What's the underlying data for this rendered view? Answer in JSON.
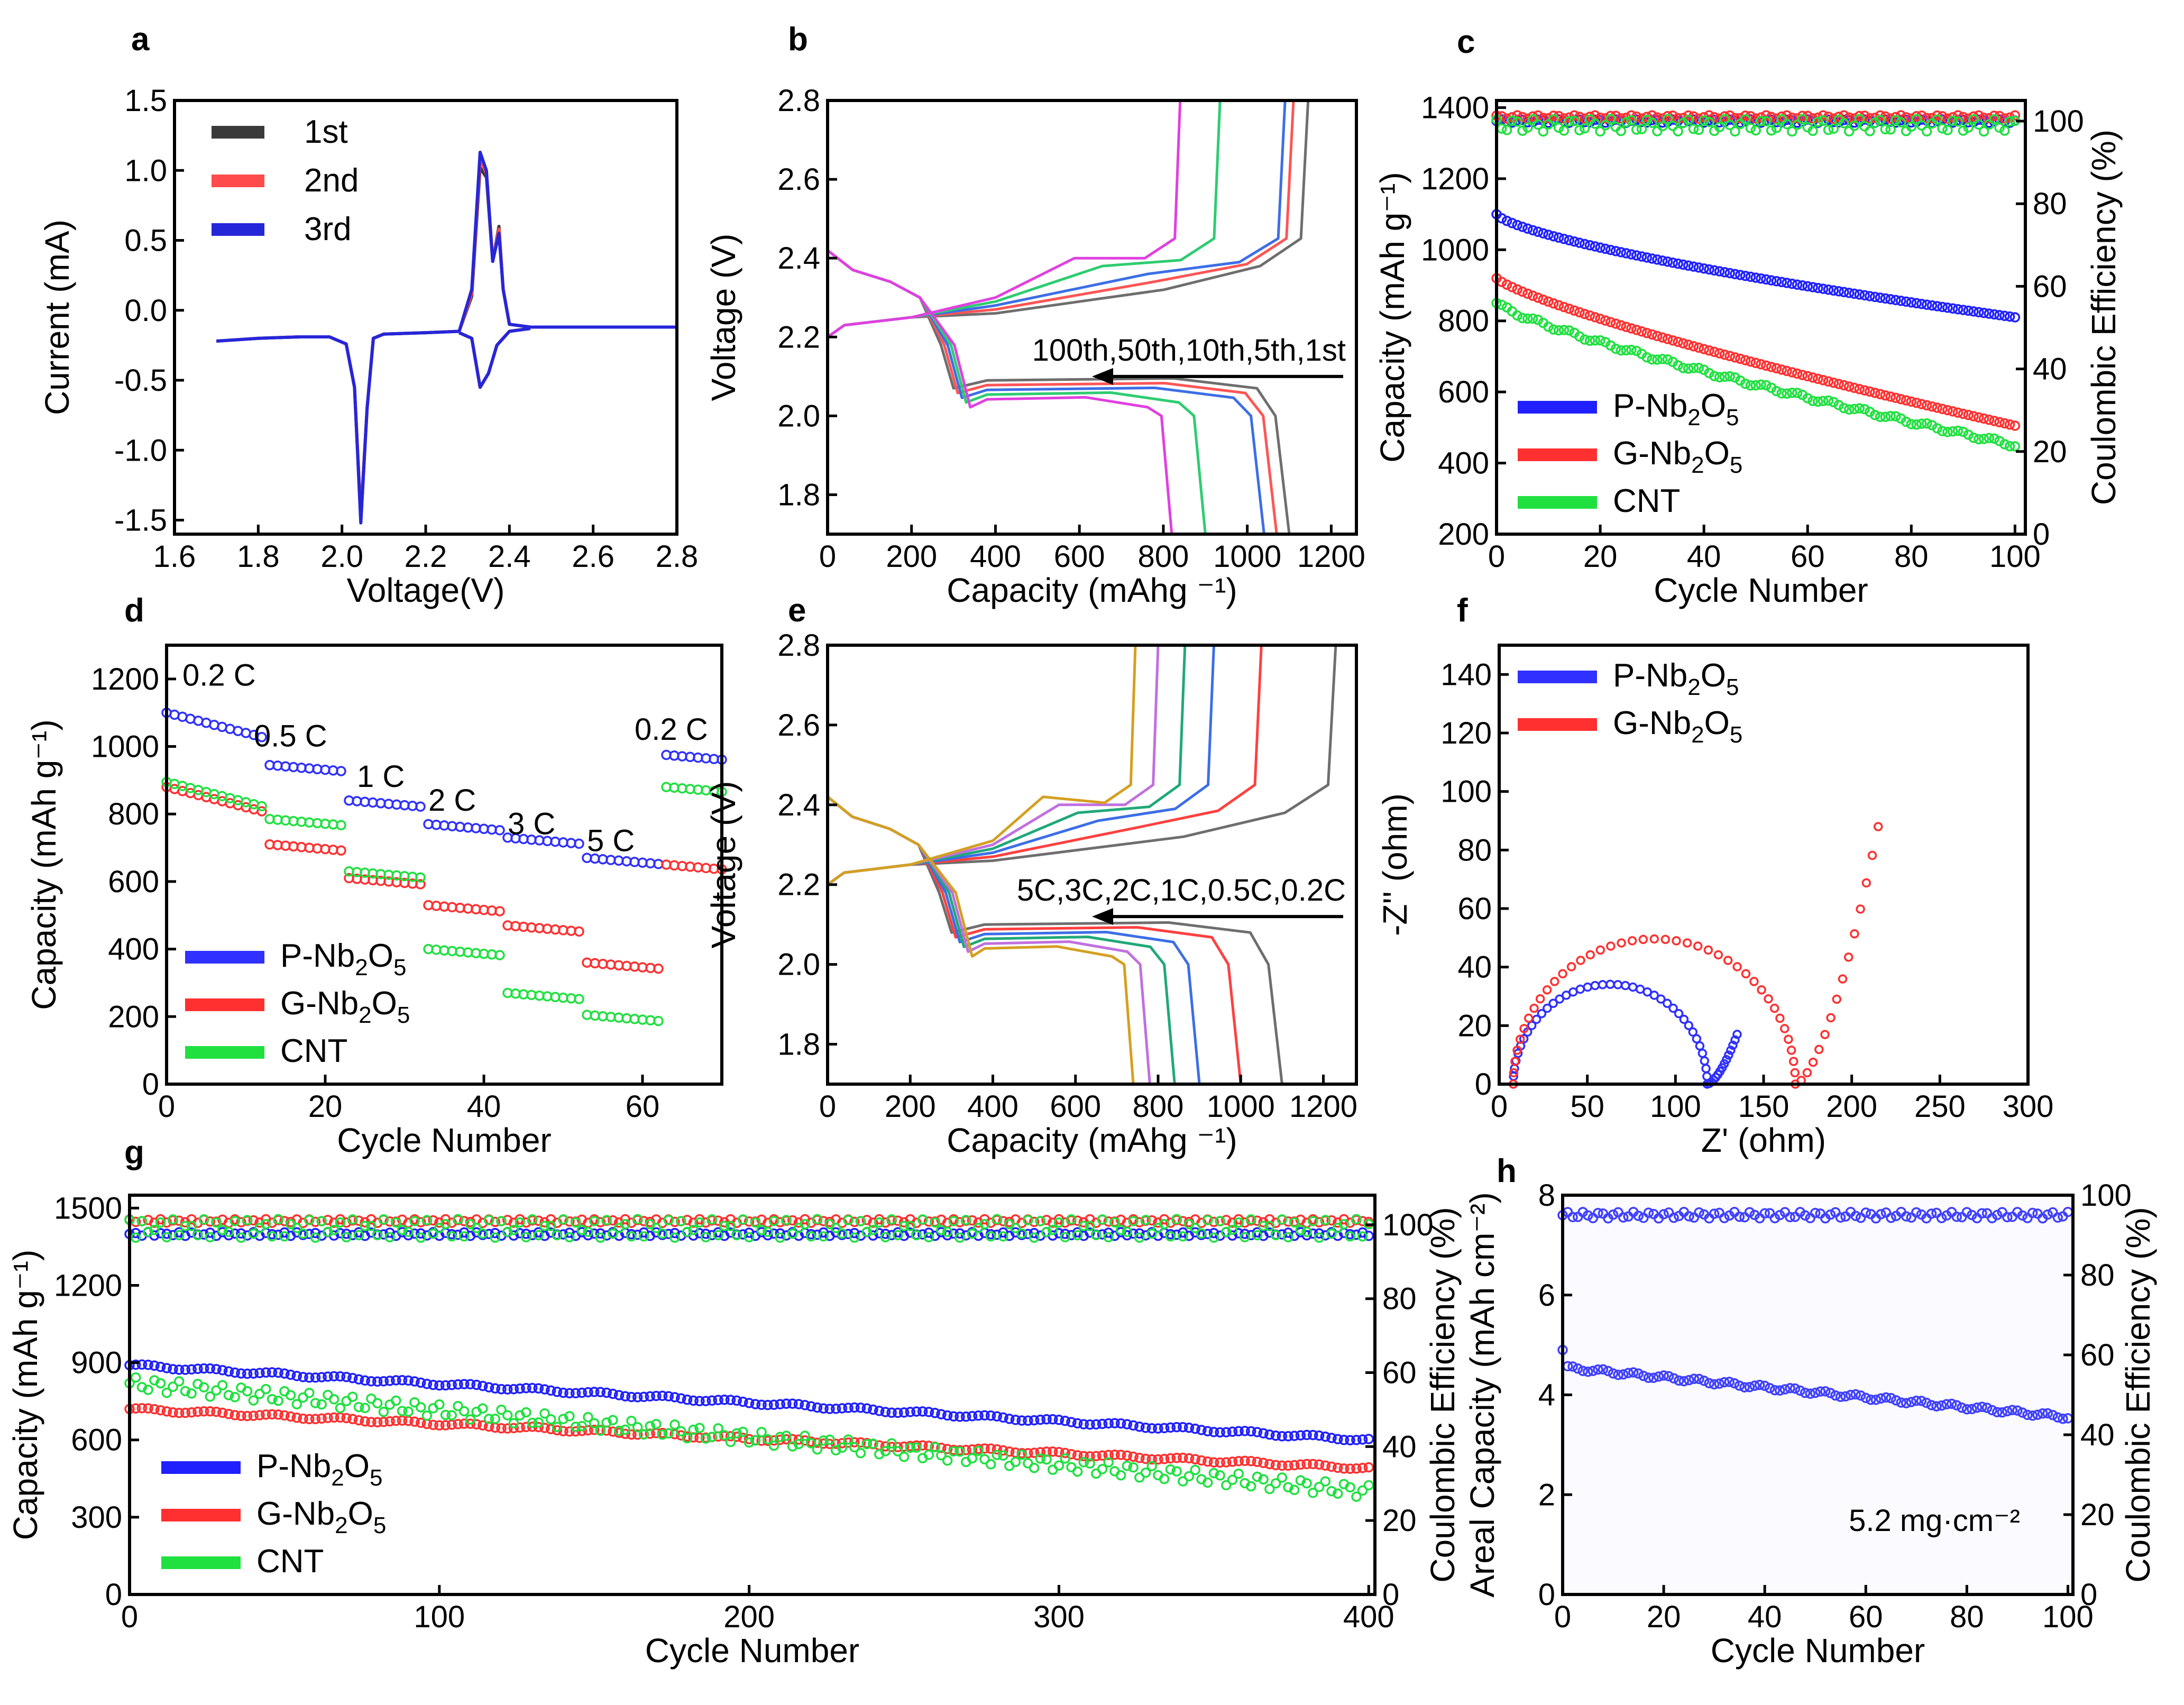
{
  "figure": {
    "panels": {
      "a": {
        "letter": "a"
      },
      "b": {
        "letter": "b"
      },
      "c": {
        "letter": "c"
      },
      "d": {
        "letter": "d"
      },
      "e": {
        "letter": "e"
      },
      "f": {
        "letter": "f"
      },
      "g": {
        "letter": "g"
      },
      "h": {
        "letter": "h"
      }
    }
  },
  "chart_data": [
    {
      "id": "a",
      "type": "line",
      "xlabel": "Voltage(V)",
      "ylabel": "Current (mA)",
      "xlim": [
        1.6,
        2.8
      ],
      "ylim": [
        -1.6,
        1.5
      ],
      "xticks": [
        "1.6",
        "1.8",
        "2.0",
        "2.2",
        "2.4",
        "2.6",
        "2.8"
      ],
      "yticks": [
        "-1.5",
        "-1.0",
        "-0.5",
        "0.0",
        "0.5",
        "1.0",
        "1.5"
      ],
      "series": [
        {
          "name": "1st",
          "color": "#3a3a3a",
          "x": [
            1.7,
            1.8,
            1.9,
            1.97,
            2.01,
            2.03,
            2.045,
            2.06,
            2.075,
            2.1,
            2.2,
            2.28,
            2.31,
            2.33,
            2.345,
            2.36,
            2.375,
            2.385,
            2.4,
            2.45,
            2.6,
            2.8
          ],
          "y": [
            -0.22,
            -0.2,
            -0.19,
            -0.19,
            -0.24,
            -0.55,
            -1.47,
            -0.7,
            -0.2,
            -0.17,
            -0.16,
            -0.15,
            0.1,
            1.02,
            0.95,
            0.35,
            0.6,
            0.15,
            -0.1,
            -0.12,
            -0.12,
            -0.12
          ]
        },
        {
          "name": "2nd",
          "color": "#ff4b4b",
          "x": [
            1.7,
            1.8,
            1.9,
            1.97,
            2.01,
            2.03,
            2.045,
            2.06,
            2.075,
            2.1,
            2.2,
            2.28,
            2.31,
            2.33,
            2.345,
            2.36,
            2.375,
            2.385,
            2.4,
            2.45,
            2.6,
            2.8
          ],
          "y": [
            -0.22,
            -0.2,
            -0.19,
            -0.19,
            -0.24,
            -0.55,
            -1.49,
            -0.7,
            -0.2,
            -0.17,
            -0.16,
            -0.15,
            0.12,
            1.08,
            0.98,
            0.35,
            0.58,
            0.15,
            -0.1,
            -0.12,
            -0.12,
            -0.12
          ]
        },
        {
          "name": "3rd",
          "color": "#2626d9",
          "x": [
            1.7,
            1.8,
            1.9,
            1.97,
            2.01,
            2.03,
            2.045,
            2.06,
            2.075,
            2.1,
            2.2,
            2.28,
            2.31,
            2.33,
            2.345,
            2.36,
            2.375,
            2.385,
            2.4,
            2.45,
            2.6,
            2.8
          ],
          "y": [
            -0.22,
            -0.2,
            -0.19,
            -0.19,
            -0.24,
            -0.55,
            -1.52,
            -0.7,
            -0.2,
            -0.17,
            -0.16,
            -0.15,
            0.15,
            1.13,
            1.0,
            0.35,
            0.55,
            0.15,
            -0.1,
            -0.12,
            -0.12,
            -0.12
          ]
        }
      ],
      "reverse_segment": {
        "x": [
          2.28,
          2.31,
          2.33,
          2.35,
          2.37,
          2.4,
          2.45
        ],
        "y": [
          -0.16,
          -0.2,
          -0.55,
          -0.45,
          -0.25,
          -0.15,
          -0.13
        ]
      },
      "legend": [
        "1st",
        "2nd",
        "3rd"
      ]
    },
    {
      "id": "b",
      "type": "line",
      "xlabel": "Capacity (mAhg ⁻¹)",
      "ylabel": "Voltage (V)",
      "xlim": [
        0,
        1260
      ],
      "ylim": [
        1.7,
        2.8
      ],
      "xticks": [
        "0",
        "200",
        "400",
        "600",
        "800",
        "1000",
        "1200"
      ],
      "yticks": [
        "1.8",
        "2.0",
        "2.2",
        "2.4",
        "2.6",
        "2.8"
      ],
      "cycles": [
        {
          "name": "1st",
          "color": "#6e6e6e",
          "capacity": 1100,
          "charge_capacity": 1145
        },
        {
          "name": "5th",
          "color": "#ff5555",
          "capacity": 1070,
          "charge_capacity": 1110
        },
        {
          "name": "10th",
          "color": "#3c6ee6",
          "capacity": 1040,
          "charge_capacity": 1090
        },
        {
          "name": "50th",
          "color": "#2ecc71",
          "capacity": 900,
          "charge_capacity": 935
        },
        {
          "name": "100th",
          "color": "#e040e0",
          "capacity": 820,
          "charge_capacity": 840
        }
      ],
      "annotation": "100th,50th,10th,5th,1st"
    },
    {
      "id": "c",
      "type": "scatter",
      "xlabel": "Cycle Number",
      "ylabel": "Capacity (mAh g⁻¹)",
      "ylabel_right": "Coulombic Efficiency (%)",
      "xlim": [
        0,
        102
      ],
      "ylim": [
        200,
        1420
      ],
      "ylim_right": [
        0,
        105
      ],
      "xticks": [
        "0",
        "20",
        "40",
        "60",
        "80",
        "100"
      ],
      "yticks": [
        "200",
        "400",
        "600",
        "800",
        "1000",
        "1200",
        "1400"
      ],
      "yticks_right": [
        "0",
        "20",
        "40",
        "60",
        "80",
        "100"
      ],
      "series": [
        {
          "name": "P-Nb2O5",
          "color": "#2020ff",
          "start": 1100,
          "end": 810,
          "ce": 100
        },
        {
          "name": "G-Nb2O5",
          "color": "#ff3030",
          "start": 920,
          "end": 505,
          "ce": 101
        },
        {
          "name": "CNT",
          "color": "#20e040",
          "start": 850,
          "end": 450,
          "ce": 99
        }
      ],
      "legend": [
        {
          "base": "P-Nb",
          "sub1": "2",
          "mid": "O",
          "sub2": "5"
        },
        {
          "base": "G-Nb",
          "sub1": "2",
          "mid": "O",
          "sub2": "5"
        },
        {
          "base": "CNT",
          "sub1": "",
          "mid": "",
          "sub2": ""
        }
      ]
    },
    {
      "id": "d",
      "type": "scatter",
      "xlabel": "Cycle Number",
      "ylabel": "Capacity (mAh g⁻¹)",
      "xlim": [
        0,
        70
      ],
      "ylim": [
        0,
        1300
      ],
      "xticks": [
        "0",
        "20",
        "40",
        "60"
      ],
      "yticks": [
        "0",
        "200",
        "400",
        "600",
        "800",
        "1000",
        "1200"
      ],
      "rates": [
        "0.2 C",
        "0.5 C",
        "1 C",
        "2 C",
        "3 C",
        "5 C",
        "0.2 C"
      ],
      "series": [
        {
          "name": "P-Nb2O5",
          "color": "#3030ff",
          "steps": [
            1080,
            925,
            820,
            750,
            710,
            650,
            955
          ]
        },
        {
          "name": "G-Nb2O5",
          "color": "#ff3030",
          "steps": [
            860,
            690,
            590,
            510,
            450,
            340,
            630
          ]
        },
        {
          "name": "CNT",
          "color": "#20e040",
          "steps": [
            875,
            765,
            610,
            380,
            250,
            185,
            860
          ]
        }
      ],
      "legend": [
        {
          "base": "P-Nb",
          "sub1": "2",
          "mid": "O",
          "sub2": "5"
        },
        {
          "base": "G-Nb",
          "sub1": "2",
          "mid": "O",
          "sub2": "5"
        },
        {
          "base": "CNT",
          "sub1": "",
          "mid": "",
          "sub2": ""
        }
      ]
    },
    {
      "id": "e",
      "type": "line",
      "xlabel": "Capacity (mAhg ⁻¹)",
      "ylabel": "Voltage (V)",
      "xlim": [
        0,
        1280
      ],
      "ylim": [
        1.7,
        2.8
      ],
      "xticks": [
        "0",
        "200",
        "400",
        "600",
        "800",
        "1000",
        "1200"
      ],
      "yticks": [
        "1.8",
        "2.0",
        "2.2",
        "2.4",
        "2.6",
        "2.8"
      ],
      "cycles": [
        {
          "name": "0.2C",
          "color": "#6e6e6e",
          "capacity": 1100,
          "charge_capacity": 1230
        },
        {
          "name": "0.5C",
          "color": "#ff4040",
          "capacity": 1000,
          "charge_capacity": 1050
        },
        {
          "name": "1C",
          "color": "#3c6ee6",
          "capacity": 900,
          "charge_capacity": 935
        },
        {
          "name": "2C",
          "color": "#20a878",
          "capacity": 840,
          "charge_capacity": 865
        },
        {
          "name": "3C",
          "color": "#c070e0",
          "capacity": 780,
          "charge_capacity": 800
        },
        {
          "name": "5C",
          "color": "#d4a020",
          "capacity": 740,
          "charge_capacity": 745
        }
      ],
      "annotation": "5C,3C,2C,1C,0.5C,0.2C"
    },
    {
      "id": "f",
      "type": "scatter",
      "xlabel": "Z' (ohm)",
      "ylabel": "-Z'' (ohm)",
      "xlim": [
        0,
        300
      ],
      "ylim": [
        0,
        150
      ],
      "xticks": [
        "0",
        "50",
        "100",
        "150",
        "200",
        "250",
        "300"
      ],
      "yticks": [
        "0",
        "20",
        "40",
        "60",
        "80",
        "100",
        "120",
        "140"
      ],
      "series": [
        {
          "name": "P-Nb2O5",
          "color": "#3030ff",
          "r0": 8,
          "diameter": 110,
          "tail_end": [
            135,
            17
          ]
        },
        {
          "name": "G-Nb2O5",
          "color": "#ff3030",
          "r0": 8,
          "diameter": 160,
          "tail_end": [
            215,
            88
          ]
        }
      ],
      "legend": [
        {
          "base": "P-Nb",
          "sub1": "2",
          "mid": "O",
          "sub2": "5"
        },
        {
          "base": "G-Nb",
          "sub1": "2",
          "mid": "O",
          "sub2": "5"
        }
      ]
    },
    {
      "id": "g",
      "type": "scatter",
      "xlabel": "Cycle Number",
      "ylabel": "Capacity (mAh g⁻¹)",
      "ylabel_right": "Coulombic Efficiency (%)",
      "xlim": [
        0,
        402
      ],
      "ylim": [
        0,
        1550
      ],
      "ylim_right": [
        0,
        108
      ],
      "xticks": [
        "0",
        "100",
        "200",
        "300",
        "400"
      ],
      "yticks": [
        "0",
        "300",
        "600",
        "900",
        "1200",
        "1500"
      ],
      "yticks_right": [
        "0",
        "20",
        "40",
        "60",
        "80",
        "100"
      ],
      "series": [
        {
          "name": "P-Nb2O5",
          "color": "#2020ff",
          "start": 890,
          "end": 600,
          "ce": 97.5
        },
        {
          "name": "G-Nb2O5",
          "color": "#ff3030",
          "start": 720,
          "end": 490,
          "ce": 101
        },
        {
          "name": "CNT",
          "color": "#20e040",
          "start": 820,
          "end": 400,
          "ce": 99
        }
      ],
      "legend": [
        {
          "base": "P-Nb",
          "sub1": "2",
          "mid": "O",
          "sub2": "5"
        },
        {
          "base": "G-Nb",
          "sub1": "2",
          "mid": "O",
          "sub2": "5"
        },
        {
          "base": "CNT",
          "sub1": "",
          "mid": "",
          "sub2": ""
        }
      ]
    },
    {
      "id": "h",
      "type": "scatter",
      "xlabel": "Cycle Number",
      "ylabel": "Areal Capacity (mAh cm⁻²)",
      "ylabel_right": "Coulombic Efficiency (%)",
      "xlim": [
        0,
        101
      ],
      "ylim": [
        0,
        8
      ],
      "ylim_right": [
        0,
        100
      ],
      "xticks": [
        "0",
        "20",
        "40",
        "60",
        "80",
        "100"
      ],
      "yticks": [
        "0",
        "2",
        "4",
        "6",
        "8"
      ],
      "yticks_right": [
        "0",
        "20",
        "40",
        "60",
        "80",
        "100"
      ],
      "series": [
        {
          "name": "Areal capacity",
          "color": "#4040ff",
          "start": 4.9,
          "end": 3.55
        },
        {
          "name": "Coulombic efficiency",
          "color": "#4040ff",
          "ce": 95
        }
      ],
      "annotation": "5.2 mg·cm⁻²"
    }
  ]
}
